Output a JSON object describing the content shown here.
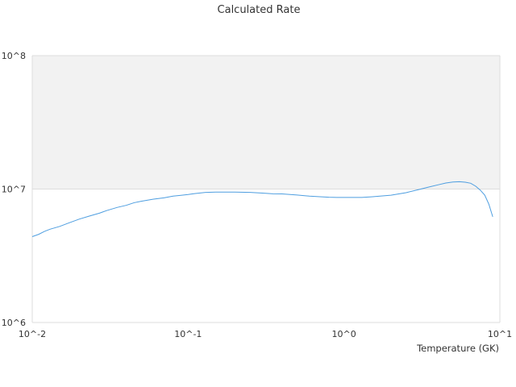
{
  "chart_data": {
    "type": "line",
    "title": "Calculated Rate",
    "xlabel": "Temperature (GK)",
    "ylabel": "",
    "xscale": "log",
    "yscale": "log",
    "xlim": [
      0.01,
      10
    ],
    "ylim": [
      1000000,
      100000000
    ],
    "x_tick_labels": [
      "10^-2",
      "10^-1",
      "10^0",
      "10^1"
    ],
    "y_tick_labels": [
      "10^6",
      "10^7",
      "10^8"
    ],
    "grid": true,
    "legend": "none",
    "series": [
      {
        "color": "#4e9ee0",
        "x": [
          0.01,
          0.011,
          0.012,
          0.013,
          0.015,
          0.017,
          0.02,
          0.023,
          0.027,
          0.03,
          0.035,
          0.04,
          0.045,
          0.05,
          0.06,
          0.07,
          0.08,
          0.09,
          0.1,
          0.11,
          0.13,
          0.15,
          0.17,
          0.2,
          0.25,
          0.3,
          0.35,
          0.4,
          0.5,
          0.6,
          0.7,
          0.8,
          0.9,
          1.0,
          1.3,
          1.5,
          2.0,
          2.5,
          3.0,
          3.5,
          4.0,
          4.5,
          5.0,
          5.5,
          6.0,
          6.5,
          7.0,
          7.5,
          8.0,
          8.5,
          9.0
        ],
        "y": [
          4400000,
          4580000,
          4820000,
          5000000,
          5250000,
          5550000,
          5950000,
          6250000,
          6600000,
          6900000,
          7280000,
          7550000,
          7900000,
          8100000,
          8400000,
          8600000,
          8850000,
          8980000,
          9100000,
          9250000,
          9450000,
          9500000,
          9500000,
          9500000,
          9450000,
          9320000,
          9220000,
          9200000,
          9020000,
          8850000,
          8760000,
          8680000,
          8650000,
          8650000,
          8650000,
          8750000,
          9000000,
          9400000,
          9900000,
          10350000,
          10750000,
          11100000,
          11300000,
          11350000,
          11250000,
          11050000,
          10500000,
          9800000,
          9000000,
          7700000,
          6200000
        ]
      }
    ]
  }
}
